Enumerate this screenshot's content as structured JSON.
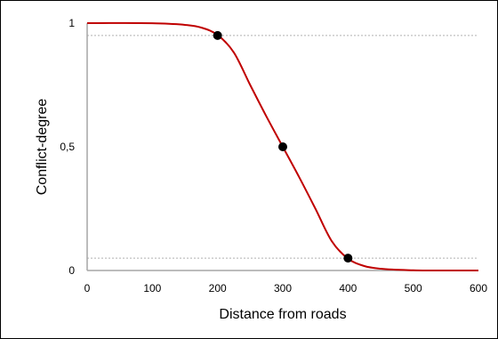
{
  "chart_data": {
    "type": "line",
    "title": "",
    "xlabel": "Distance from roads",
    "ylabel": "Conflict-degree",
    "xlim": [
      0,
      600
    ],
    "ylim": [
      0,
      1
    ],
    "x_ticks": [
      "0",
      "100",
      "200",
      "300",
      "400",
      "500",
      "600"
    ],
    "y_ticks": [
      "0",
      "0,5",
      "1"
    ],
    "grid": false,
    "legend": "none",
    "series": [
      {
        "color": "#c00000",
        "style": "smooth sigmoid curve",
        "x": [
          0,
          100,
          150,
          175,
          200,
          225,
          250,
          275,
          300,
          325,
          350,
          375,
          400,
          425,
          450,
          500,
          600
        ],
        "y": [
          1.0,
          0.9995,
          0.993,
          0.982,
          0.952,
          0.881,
          0.75,
          0.622,
          0.5,
          0.378,
          0.25,
          0.119,
          0.048,
          0.018,
          0.007,
          0.001,
          0.0
        ]
      }
    ],
    "points": [
      {
        "x": 200,
        "y": 0.95
      },
      {
        "x": 300,
        "y": 0.5
      },
      {
        "x": 400,
        "y": 0.05
      }
    ],
    "reference_lines": [
      {
        "y": 0.95,
        "color": "#b0b0b0",
        "style": "dotted"
      },
      {
        "y": 0.05,
        "color": "#b0b0b0",
        "style": "dotted"
      }
    ],
    "colors": {
      "curve": "#c00000",
      "points": "#000000",
      "axes": "#a6a6a6"
    }
  }
}
